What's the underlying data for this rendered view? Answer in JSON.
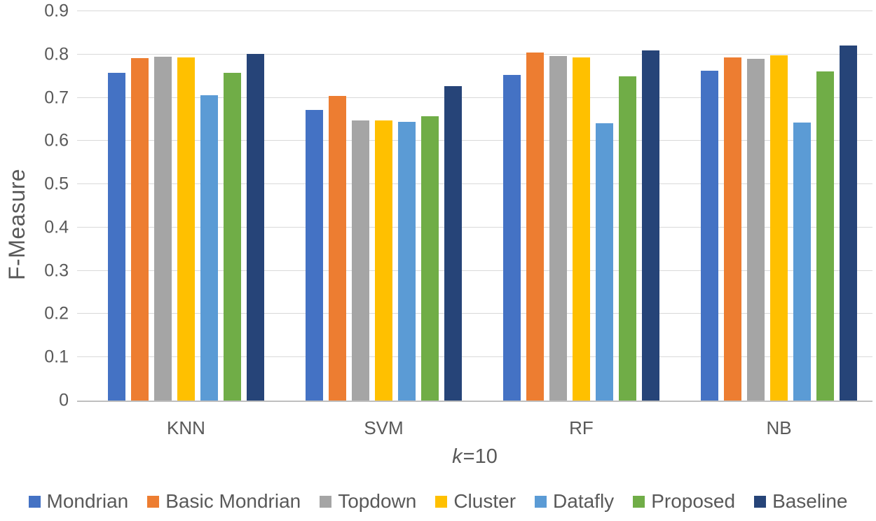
{
  "chart_data": {
    "type": "bar",
    "title": "",
    "ylabel": "F-Measure",
    "xlabel": "k=10",
    "xlabel_parts": {
      "italic": "k",
      "rest": "=10"
    },
    "ylim": [
      0,
      0.9
    ],
    "yticks": [
      "0",
      "0.1",
      "0.2",
      "0.3",
      "0.4",
      "0.5",
      "0.6",
      "0.7",
      "0.8",
      "0.9"
    ],
    "categories": [
      "KNN",
      "SVM",
      "RF",
      "NB"
    ],
    "series": [
      {
        "name": "Mondrian",
        "color": "#4472C4",
        "values": [
          0.757,
          0.672,
          0.753,
          0.763
        ]
      },
      {
        "name": "Basic Mondrian",
        "color": "#ED7D31",
        "values": [
          0.792,
          0.704,
          0.805,
          0.793
        ]
      },
      {
        "name": "Topdown",
        "color": "#A5A5A5",
        "values": [
          0.795,
          0.648,
          0.797,
          0.79
        ]
      },
      {
        "name": "Cluster",
        "color": "#FFC000",
        "values": [
          0.793,
          0.648,
          0.793,
          0.798
        ]
      },
      {
        "name": "Datafly",
        "color": "#5B9BD5",
        "values": [
          0.706,
          0.644,
          0.641,
          0.643
        ]
      },
      {
        "name": "Proposed",
        "color": "#70AD47",
        "values": [
          0.758,
          0.657,
          0.75,
          0.761
        ]
      },
      {
        "name": "Baseline",
        "color": "#264478",
        "values": [
          0.801,
          0.727,
          0.809,
          0.82
        ]
      }
    ],
    "grid": true,
    "legend_position": "bottom",
    "styles": {
      "text_color": "#595959",
      "gridline_color": "#D9D9D9",
      "axis_line_color": "#BFBFBF",
      "background": "#FFFFFF"
    }
  }
}
